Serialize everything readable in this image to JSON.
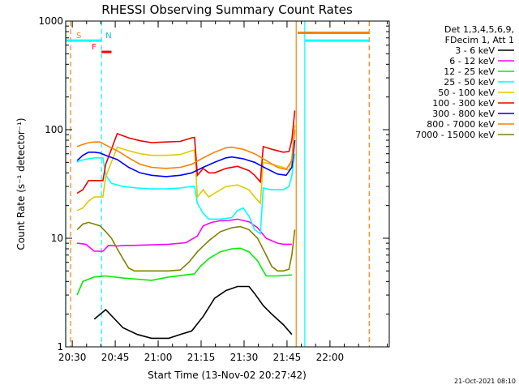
{
  "chart_data": {
    "type": "line",
    "title": "RHESSI Observing Summary Count Rates",
    "xlabel": "Start Time (13-Nov-02 20:27:42)",
    "ylabel": "Count Rate (s⁻¹ detector⁻¹)",
    "xlim": [
      0,
      113
    ],
    "ylim": [
      1,
      1000
    ],
    "yscale": "log",
    "xticks": [
      {
        "t": 2.3,
        "label": "20:30"
      },
      {
        "t": 17.3,
        "label": "20:45"
      },
      {
        "t": 32.3,
        "label": "21:00"
      },
      {
        "t": 47.3,
        "label": "21:15"
      },
      {
        "t": 62.3,
        "label": "21:30"
      },
      {
        "t": 77.3,
        "label": "21:45"
      },
      {
        "t": 92.3,
        "label": "22:00"
      }
    ],
    "yticks": [
      {
        "v": 1,
        "label": "1"
      },
      {
        "v": 10,
        "label": "10"
      },
      {
        "v": 100,
        "label": "100"
      },
      {
        "v": 1000,
        "label": "1000"
      }
    ],
    "legend_header": [
      "Det 1,3,4,5,6,9,",
      "FDecim 1, Att 1"
    ],
    "legend_position": "right",
    "series": [
      {
        "name": "3 - 6 keV",
        "color": "#000000",
        "points": [
          [
            10,
            1.8
          ],
          [
            14,
            2.2
          ],
          [
            20,
            1.5
          ],
          [
            25,
            1.3
          ],
          [
            30,
            1.2
          ],
          [
            36,
            1.2
          ],
          [
            40,
            1.3
          ],
          [
            44,
            1.4
          ],
          [
            48,
            1.9
          ],
          [
            52,
            2.8
          ],
          [
            56,
            3.3
          ],
          [
            60,
            3.6
          ],
          [
            64,
            3.6
          ],
          [
            66,
            3.1
          ],
          [
            69,
            2.4
          ],
          [
            72,
            2.0
          ],
          [
            76,
            1.6
          ],
          [
            79,
            1.3
          ]
        ]
      },
      {
        "name": "6 - 12 keV",
        "color": "#ff00ff",
        "points": [
          [
            4,
            9.0
          ],
          [
            7,
            8.8
          ],
          [
            10,
            7.6
          ],
          [
            13,
            7.6
          ],
          [
            15,
            8.6
          ],
          [
            18,
            8.5
          ],
          [
            21,
            8.6
          ],
          [
            24,
            8.6
          ],
          [
            30,
            8.7
          ],
          [
            36,
            8.8
          ],
          [
            42,
            9.1
          ],
          [
            46,
            10.5
          ],
          [
            48,
            13.0
          ],
          [
            51,
            14.0
          ],
          [
            54,
            14.5
          ],
          [
            57,
            14.6
          ],
          [
            60,
            15.0
          ],
          [
            64,
            14.2
          ],
          [
            67,
            12.5
          ],
          [
            70,
            10.0
          ],
          [
            74,
            9.0
          ],
          [
            76,
            8.8
          ],
          [
            79,
            8.8
          ]
        ]
      },
      {
        "name": "12 - 25 keV",
        "color": "#00ee00",
        "points": [
          [
            4,
            3.0
          ],
          [
            6,
            4.0
          ],
          [
            10,
            4.4
          ],
          [
            14,
            4.5
          ],
          [
            20,
            4.3
          ],
          [
            25,
            4.2
          ],
          [
            30,
            4.1
          ],
          [
            36,
            4.4
          ],
          [
            42,
            4.6
          ],
          [
            45,
            4.7
          ],
          [
            47,
            5.5
          ],
          [
            50,
            6.5
          ],
          [
            54,
            7.5
          ],
          [
            58,
            8.0
          ],
          [
            61,
            8.1
          ],
          [
            64,
            7.5
          ],
          [
            67,
            6.2
          ],
          [
            70,
            4.5
          ],
          [
            74,
            4.5
          ],
          [
            79,
            4.6
          ]
        ]
      },
      {
        "name": "25 - 50 keV",
        "color": "#00ffff",
        "points": [
          [
            4,
            50
          ],
          [
            5,
            52
          ],
          [
            8,
            54
          ],
          [
            10,
            55
          ],
          [
            12,
            55
          ],
          [
            13,
            55
          ],
          [
            14,
            38
          ],
          [
            16,
            32
          ],
          [
            20,
            30
          ],
          [
            25,
            29
          ],
          [
            30,
            28.5
          ],
          [
            35,
            28.5
          ],
          [
            40,
            29
          ],
          [
            44,
            30
          ],
          [
            45,
            30
          ],
          [
            46,
            21
          ],
          [
            48,
            17
          ],
          [
            50,
            15
          ],
          [
            54,
            15
          ],
          [
            58,
            15.5
          ],
          [
            60,
            18
          ],
          [
            62,
            19
          ],
          [
            64,
            16
          ],
          [
            66,
            12
          ],
          [
            68,
            11
          ],
          [
            69,
            29
          ],
          [
            72,
            28
          ],
          [
            76,
            28
          ],
          [
            78,
            30
          ],
          [
            79,
            38
          ],
          [
            80,
            60
          ]
        ]
      },
      {
        "name": "50 - 100 keV",
        "color": "#ddcc00",
        "points": [
          [
            4,
            18
          ],
          [
            6,
            19
          ],
          [
            8,
            22
          ],
          [
            10,
            24
          ],
          [
            12,
            24
          ],
          [
            13,
            24
          ],
          [
            14,
            37
          ],
          [
            18,
            69
          ],
          [
            22,
            64
          ],
          [
            26,
            60
          ],
          [
            30,
            58
          ],
          [
            35,
            58
          ],
          [
            40,
            59
          ],
          [
            44,
            64
          ],
          [
            45,
            65
          ],
          [
            46,
            24
          ],
          [
            48,
            28
          ],
          [
            50,
            24
          ],
          [
            52,
            26
          ],
          [
            56,
            30
          ],
          [
            60,
            31
          ],
          [
            64,
            28
          ],
          [
            66,
            24
          ],
          [
            68,
            21
          ],
          [
            69,
            50
          ],
          [
            72,
            48
          ],
          [
            76,
            45
          ],
          [
            78,
            42
          ],
          [
            79,
            55
          ],
          [
            80,
            110
          ]
        ]
      },
      {
        "name": "100 - 300 keV",
        "color": "#ee0000",
        "points": [
          [
            4,
            26
          ],
          [
            6,
            28
          ],
          [
            8,
            34
          ],
          [
            10,
            34
          ],
          [
            12,
            34
          ],
          [
            13,
            34
          ],
          [
            14,
            48
          ],
          [
            18,
            92
          ],
          [
            22,
            84
          ],
          [
            26,
            79
          ],
          [
            30,
            76
          ],
          [
            35,
            77
          ],
          [
            40,
            78
          ],
          [
            44,
            84
          ],
          [
            45,
            85
          ],
          [
            46,
            38
          ],
          [
            48,
            44
          ],
          [
            50,
            40
          ],
          [
            52,
            40
          ],
          [
            56,
            44
          ],
          [
            60,
            46
          ],
          [
            64,
            42
          ],
          [
            66,
            38
          ],
          [
            68,
            33
          ],
          [
            69,
            70
          ],
          [
            72,
            66
          ],
          [
            76,
            62
          ],
          [
            78,
            63
          ],
          [
            79,
            80
          ],
          [
            80,
            150
          ]
        ]
      },
      {
        "name": "300 - 800 keV",
        "color": "#0000ff",
        "points": [
          [
            4,
            52
          ],
          [
            6,
            58
          ],
          [
            8,
            62
          ],
          [
            10,
            62
          ],
          [
            12,
            61
          ],
          [
            14,
            58
          ],
          [
            18,
            53
          ],
          [
            22,
            45
          ],
          [
            26,
            40
          ],
          [
            30,
            38
          ],
          [
            35,
            37
          ],
          [
            40,
            38
          ],
          [
            44,
            40
          ],
          [
            48,
            45
          ],
          [
            52,
            50
          ],
          [
            56,
            55
          ],
          [
            58,
            56
          ],
          [
            62,
            54
          ],
          [
            66,
            50
          ],
          [
            70,
            44
          ],
          [
            74,
            39
          ],
          [
            77,
            38
          ],
          [
            79,
            45
          ],
          [
            80,
            80
          ]
        ]
      },
      {
        "name": "800 - 7000 keV",
        "color": "#ff8000",
        "points": [
          [
            4,
            70
          ],
          [
            6,
            73
          ],
          [
            8,
            76
          ],
          [
            10,
            77
          ],
          [
            12,
            77
          ],
          [
            14,
            72
          ],
          [
            18,
            64
          ],
          [
            22,
            55
          ],
          [
            26,
            48
          ],
          [
            30,
            45
          ],
          [
            35,
            44
          ],
          [
            40,
            45
          ],
          [
            44,
            48
          ],
          [
            48,
            55
          ],
          [
            52,
            62
          ],
          [
            56,
            68
          ],
          [
            58,
            69
          ],
          [
            62,
            66
          ],
          [
            66,
            60
          ],
          [
            70,
            52
          ],
          [
            74,
            45
          ],
          [
            77,
            43
          ],
          [
            79,
            52
          ],
          [
            80,
            100
          ]
        ]
      },
      {
        "name": "7000 - 15000 keV",
        "color": "#808000",
        "points": [
          [
            4,
            12
          ],
          [
            6,
            13.5
          ],
          [
            8,
            14
          ],
          [
            10,
            13.5
          ],
          [
            12,
            13
          ],
          [
            14,
            11.5
          ],
          [
            16,
            10
          ],
          [
            18,
            8
          ],
          [
            20,
            6.5
          ],
          [
            22,
            5.3
          ],
          [
            24,
            5.0
          ],
          [
            28,
            5.0
          ],
          [
            32,
            5.0
          ],
          [
            36,
            5.0
          ],
          [
            40,
            5.1
          ],
          [
            43,
            6.0
          ],
          [
            46,
            7.5
          ],
          [
            50,
            9.5
          ],
          [
            54,
            11.5
          ],
          [
            58,
            12.5
          ],
          [
            61,
            12.8
          ],
          [
            64,
            12
          ],
          [
            67,
            10
          ],
          [
            70,
            7
          ],
          [
            72,
            5.5
          ],
          [
            74,
            5.0
          ],
          [
            76,
            5.0
          ],
          [
            78,
            5.2
          ],
          [
            79,
            7
          ],
          [
            80,
            12
          ]
        ]
      }
    ],
    "attenuator_markers": [
      {
        "label": "S",
        "t": 0,
        "t_end": 12.5,
        "level": 660,
        "color": "#00ffff"
      },
      {
        "label": "N",
        "t": 12.5,
        "level": 660,
        "color": "#00ffff"
      },
      {
        "label": "F",
        "t": 12.5,
        "t_end": 16,
        "level": 520,
        "color": "#ff0000"
      }
    ],
    "flag_bars": [
      {
        "color": "#ff8000",
        "t_start": 81,
        "t_end": 106,
        "level": 780
      },
      {
        "color": "#00ffff",
        "t_start": 83.5,
        "t_end": 106,
        "level": 660
      }
    ],
    "vertical_lines": [
      {
        "t": 0,
        "color": "#00ffff",
        "style": "solid"
      },
      {
        "t": 1.7,
        "color": "#ff8000",
        "style": "dashed"
      },
      {
        "t": 12.5,
        "color": "#00ffff",
        "style": "dashed"
      },
      {
        "t": 80.5,
        "color": "#ff8000",
        "style": "solid"
      },
      {
        "t": 83.5,
        "color": "#00ffff",
        "style": "solid"
      },
      {
        "t": 106,
        "color": "#ff8000",
        "style": "dashed"
      }
    ]
  },
  "footer_date": "21-Oct-2021 08:10"
}
